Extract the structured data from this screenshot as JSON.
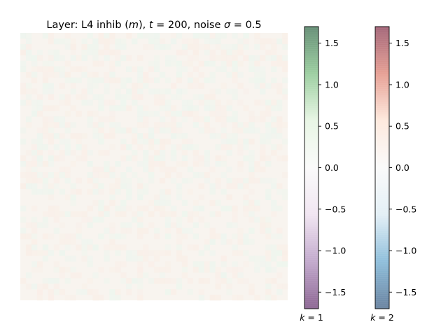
{
  "chart_data": [
    {
      "type": "heatmap",
      "title_parts": [
        "Layer: L4 inhib (",
        "m",
        "), ",
        "t",
        " = 200, noise ",
        "σ",
        " = 0.5"
      ],
      "xlabel": "",
      "ylabel": "",
      "grid": false,
      "axes_ticks_visible": false,
      "description_of_values": "near-uniform field, values close to 0; faint greenish (k=1 positive) and light-peach (k=2 positive) tints"
    },
    {
      "type": "colorbar",
      "name": "k=1",
      "label_parts": [
        "k",
        " = 1"
      ],
      "cmap": "PRGn",
      "vlim": [
        -1.7,
        1.7
      ],
      "ticks": [
        -1.5,
        -1.0,
        -0.5,
        0.0,
        0.5,
        1.0,
        1.5
      ],
      "tick_labels": [
        "−1.5",
        "−1.0",
        "−0.5",
        "0.0",
        "0.5",
        "1.0",
        "1.5"
      ],
      "alpha": 0.6
    },
    {
      "type": "colorbar",
      "name": "k=2",
      "label_parts": [
        "k",
        " = 2"
      ],
      "cmap": "RdBu_r",
      "vlim": [
        -1.7,
        1.7
      ],
      "ticks": [
        -1.5,
        -1.0,
        -0.5,
        0.0,
        0.5,
        1.0,
        1.5
      ],
      "tick_labels": [
        "−1.5",
        "−1.0",
        "−0.5",
        "0.0",
        "0.5",
        "1.0",
        "1.5"
      ],
      "alpha": 0.6
    }
  ],
  "colors": {
    "prgn_stops": [
      "#40004b",
      "#9970ab",
      "#e7d4e8",
      "#f7f7f7",
      "#d9f0d3",
      "#5aae61",
      "#00441b"
    ],
    "rdbu_r_stops": [
      "#053061",
      "#4393c3",
      "#d1e5f0",
      "#f7f7f7",
      "#fddbc7",
      "#d6604d",
      "#67001f"
    ],
    "heatmap_base": "#f8f4ef",
    "heatmap_tint_green": "#eef5ee",
    "heatmap_tint_peach": "#f9efe8"
  }
}
